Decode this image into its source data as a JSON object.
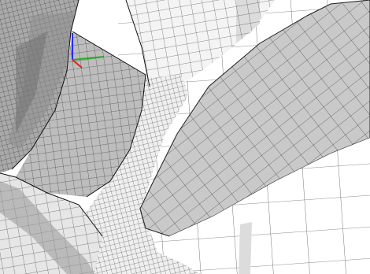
{
  "viewport": {
    "kind": "3d-mesh-viewport",
    "background": "#ffffff",
    "colors": {
      "face_light": "#f4f4f4",
      "face_mid": "#d8d8d8",
      "face_dark": "#b4b4b4",
      "face_shadow": "#8e8e8e",
      "grid_line": "#1e1e1e"
    }
  },
  "triad": {
    "icon": "axis-triad-icon",
    "x_color": "#20b020",
    "y_color": "#2a2aff",
    "z_color": "#e02020",
    "labels": []
  }
}
